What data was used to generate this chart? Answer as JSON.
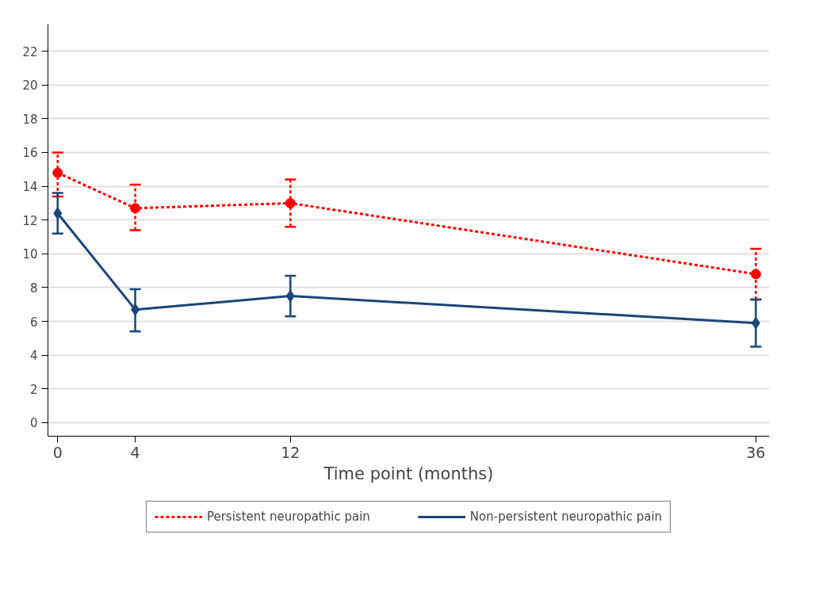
{
  "chart_data": {
    "type": "line",
    "xlabel": "Time point (months)",
    "x": [
      0,
      4,
      12,
      36
    ],
    "series": [
      {
        "name": "Persistent neuropathic pain",
        "color": "#ff0000",
        "values": [
          14.8,
          12.7,
          13.0,
          8.8
        ],
        "errors": [
          [
            13.4,
            16.0
          ],
          [
            11.4,
            14.1
          ],
          [
            11.6,
            14.4
          ],
          [
            7.3,
            10.3
          ]
        ],
        "marker": "circle",
        "line_style": "dashed"
      },
      {
        "name": "Non-persistent neuropathic pain",
        "color": "#1a4679",
        "values": [
          12.4,
          6.7,
          7.5,
          5.9
        ],
        "errors": [
          [
            11.2,
            13.6
          ],
          [
            5.4,
            7.9
          ],
          [
            6.3,
            8.7
          ],
          [
            4.5,
            7.3
          ]
        ],
        "marker": "diamond",
        "line_style": "solid"
      }
    ],
    "xlim": [
      -0.5,
      36.7
    ],
    "ylim": [
      -0.8,
      23.6
    ],
    "xticks": [
      0,
      4,
      12,
      36
    ],
    "yticks": [
      0,
      2,
      4,
      6,
      8,
      10,
      12,
      14,
      16,
      18,
      20,
      22
    ],
    "grid": "y",
    "legend": "bottom"
  }
}
